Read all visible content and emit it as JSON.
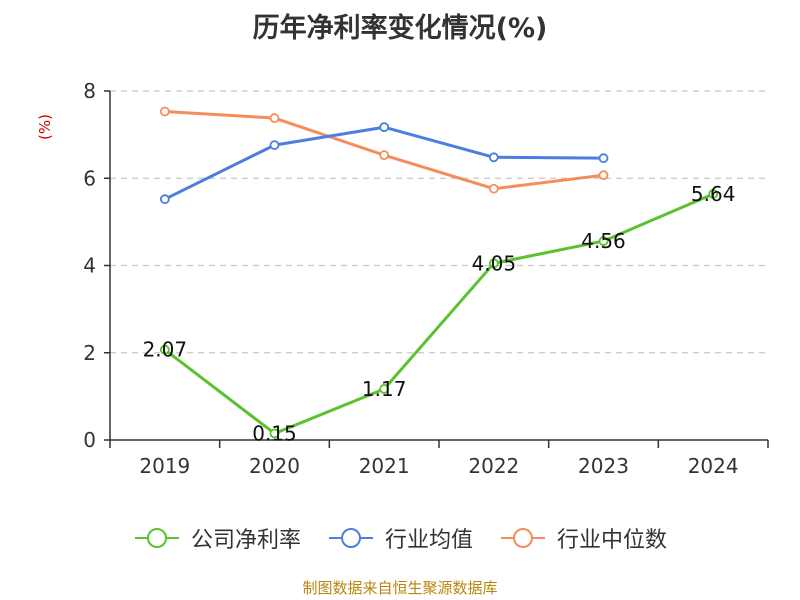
{
  "source": "制图数据来自恒生聚源数据库",
  "colors": {
    "company": "#5cc12f",
    "industry_avg": "#4a7ee0",
    "industry_median": "#f58d5b",
    "grid": "#c8c8c8",
    "axis": "#333333",
    "ylabel": "#cc0000",
    "source": "#b8860b"
  },
  "chart_data": {
    "type": "line",
    "title": "历年净利率变化情况(%)",
    "xlabel": "",
    "ylabel": "(%)",
    "categories": [
      "2019",
      "2020",
      "2021",
      "2022",
      "2023",
      "2024"
    ],
    "ylim": [
      0,
      8
    ],
    "yticks": [
      0,
      2,
      4,
      6,
      8
    ],
    "grid": true,
    "legend_position": "bottom",
    "series": [
      {
        "key": "company",
        "name": "公司净利率",
        "values": [
          2.07,
          0.15,
          1.17,
          4.05,
          4.56,
          5.64
        ],
        "labels": [
          "2.07",
          "0.15",
          "1.17",
          "4.05",
          "4.56",
          "5.64"
        ],
        "show_labels": true
      },
      {
        "key": "industry_avg",
        "name": "行业均值",
        "values": [
          5.52,
          6.76,
          7.17,
          6.48,
          6.46,
          null
        ],
        "show_labels": false
      },
      {
        "key": "industry_median",
        "name": "行业中位数",
        "values": [
          7.53,
          7.38,
          6.53,
          5.76,
          6.07,
          null
        ],
        "show_labels": false
      }
    ]
  }
}
